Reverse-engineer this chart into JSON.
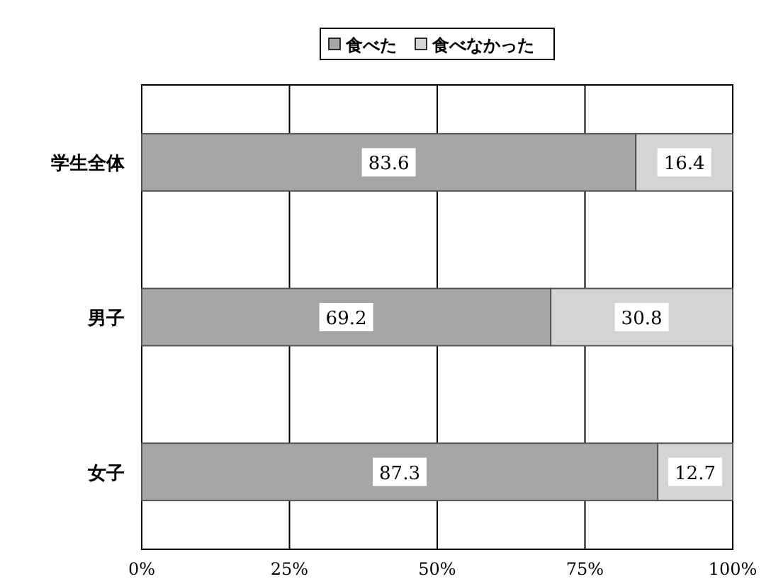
{
  "chart_data": {
    "type": "bar",
    "orientation": "horizontal",
    "stacked": true,
    "categories": [
      "学生全体",
      "男子",
      "女子"
    ],
    "series": [
      {
        "name": "食べた",
        "color": "#a6a6a6",
        "values": [
          83.6,
          69.2,
          87.3
        ]
      },
      {
        "name": "食べなかった",
        "color": "#d4d4d4",
        "values": [
          16.4,
          30.8,
          12.7
        ]
      }
    ],
    "xlim": [
      0,
      100
    ],
    "xticks": [
      {
        "value": 0,
        "label": "0%"
      },
      {
        "value": 25,
        "label": "25%"
      },
      {
        "value": 50,
        "label": "50%"
      },
      {
        "value": 75,
        "label": "75%"
      },
      {
        "value": 100,
        "label": "100%"
      }
    ],
    "grid": "x",
    "legend": "top",
    "data_labels": true
  }
}
